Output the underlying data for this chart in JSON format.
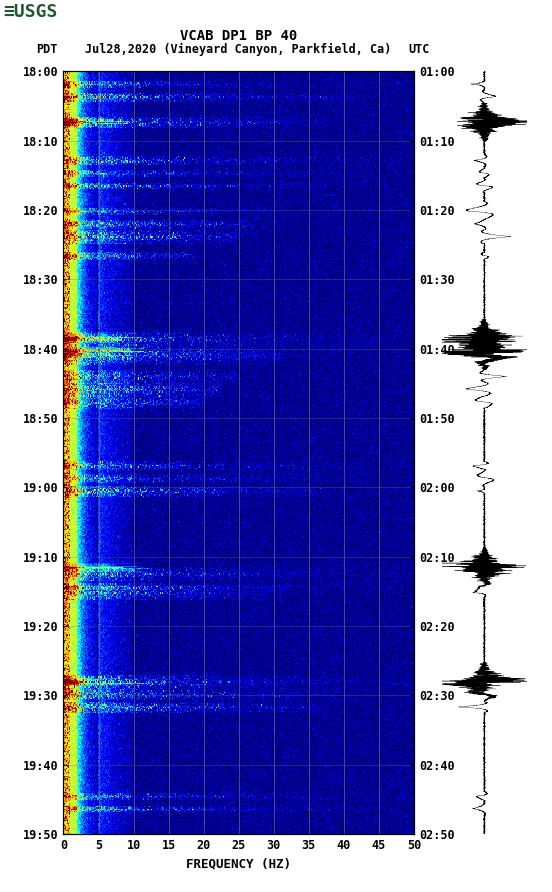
{
  "title_line1": "VCAB DP1 BP 40",
  "title_line2_pdt": "PDT",
  "title_line2_date": "Jul28,2020 (Vineyard Canyon, Parkfield, Ca)",
  "title_line2_utc": "UTC",
  "xlabel": "FREQUENCY (HZ)",
  "freq_min": 0,
  "freq_max": 50,
  "ytick_labels_left": [
    "18:00",
    "18:10",
    "18:20",
    "18:30",
    "18:40",
    "18:50",
    "19:00",
    "19:10",
    "19:20",
    "19:30",
    "19:40",
    "19:50"
  ],
  "ytick_labels_right": [
    "01:00",
    "01:10",
    "01:20",
    "01:30",
    "01:40",
    "01:50",
    "02:00",
    "02:10",
    "02:20",
    "02:30",
    "02:40",
    "02:50"
  ],
  "xtick_vals": [
    0,
    5,
    10,
    15,
    20,
    25,
    30,
    35,
    40,
    45,
    50
  ],
  "vgrid_freqs": [
    5,
    10,
    15,
    20,
    25,
    30,
    35,
    40,
    45
  ],
  "grid_color": "#707070",
  "figure_bg": "#ffffff",
  "usgs_green": "#215732",
  "font_family": "monospace",
  "title_fontsize": 10,
  "tick_fontsize": 8.5,
  "label_fontsize": 9,
  "n_time": 600,
  "n_freq": 400,
  "seed": 42,
  "event_times": [
    10,
    20,
    40,
    70,
    80,
    90,
    110,
    120,
    130,
    145,
    210,
    220,
    225,
    240,
    250,
    260,
    310,
    320,
    330,
    395,
    405,
    410,
    480,
    490,
    500,
    570,
    580
  ],
  "event_freqs_max": [
    400,
    350,
    300,
    400,
    380,
    360,
    250,
    220,
    200,
    150,
    400,
    380,
    250,
    200,
    180,
    160,
    400,
    350,
    300,
    400,
    380,
    250,
    400,
    350,
    300,
    400,
    380
  ],
  "bg_power": -3.5,
  "low_freq_power": 2.0,
  "low_freq_cutoff": 30,
  "event_power": 4.0
}
